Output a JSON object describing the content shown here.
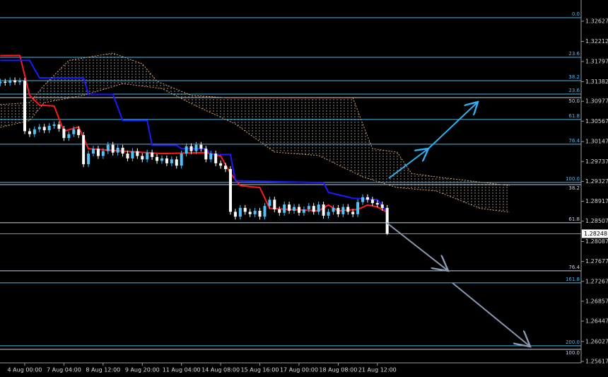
{
  "chart_data": {
    "type": "candlestick",
    "xlim": [
      -5.05,
      113.6
    ],
    "ylim": [
      1.25296,
      1.33064
    ],
    "up_color": "#4fc3f7",
    "down_color": "#ffffff",
    "xticks": [
      {
        "value": 0,
        "label": "4 Aug 00:00"
      },
      {
        "value": 8,
        "label": "7 Aug 04:00"
      },
      {
        "value": 16,
        "label": "8 Aug 12:00"
      },
      {
        "value": 24,
        "label": "9 Aug 20:00"
      },
      {
        "value": 32,
        "label": "11 Aug 04:00"
      },
      {
        "value": 40,
        "label": "14 Aug 08:00"
      },
      {
        "value": 48,
        "label": "15 Aug 16:00"
      },
      {
        "value": 56,
        "label": "17 Aug 00:00"
      },
      {
        "value": 64,
        "label": "18 Aug 08:00"
      },
      {
        "value": 72,
        "label": "21 Aug 12:00"
      }
    ],
    "yticks": [
      1.32627,
      1.32212,
      1.31797,
      1.31382,
      1.30977,
      1.30567,
      1.30147,
      1.29737,
      1.29327,
      1.28917,
      1.28507,
      1.28087,
      1.27677,
      1.27267,
      1.26857,
      1.26447,
      1.26027,
      1.25617
    ],
    "price": 1.28248,
    "levels": [
      {
        "value": 1.327,
        "label": "0.0",
        "color": "#4fb8e8"
      },
      {
        "value": 1.31884,
        "label": "23.6",
        "color": "#4fb8e8"
      },
      {
        "value": 1.31403,
        "label": "38.2",
        "color": "#4fb8e8"
      },
      {
        "value": 1.31126,
        "label": "23.6",
        "color": "#4fb8e8"
      },
      {
        "value": 1.31053,
        "label": "50.0",
        "color": "#c8d0dc"
      },
      {
        "value": 1.30602,
        "label": "61.8",
        "color": "#4fb8e8"
      },
      {
        "value": 1.30092,
        "label": "76.4",
        "color": "#4fb8e8"
      },
      {
        "value": 1.29305,
        "label": "100.0",
        "color": "#4fb8e8"
      },
      {
        "value": 1.29261,
        "label": "38.2",
        "color": "#c8d0dc"
      },
      {
        "value": 1.28475,
        "label": "61.8",
        "color": "#c8d0dc"
      },
      {
        "value": 1.27484,
        "label": "76.4",
        "color": "#c8d0dc"
      },
      {
        "value": 1.27236,
        "label": "161.8",
        "color": "#4fb8e8"
      },
      {
        "value": 1.25939,
        "label": "200.0",
        "color": "#4fb8e8"
      },
      {
        "value": 1.25866,
        "label": "100.0",
        "color": "#c8d0dc"
      }
    ],
    "x": [
      -5,
      -4,
      -3,
      -2,
      -1,
      0,
      1,
      2,
      3,
      4,
      5,
      6,
      7,
      8,
      9,
      10,
      11,
      12,
      13,
      14,
      15,
      16,
      17,
      18,
      19,
      20,
      21,
      22,
      23,
      24,
      25,
      26,
      27,
      28,
      29,
      30,
      31,
      32,
      33,
      34,
      35,
      36,
      37,
      38,
      39,
      40,
      41,
      42,
      43,
      44,
      45,
      46,
      47,
      48,
      49,
      50,
      51,
      52,
      53,
      54,
      55,
      56,
      57,
      58,
      59,
      60,
      61,
      62,
      63,
      64,
      65,
      66,
      67,
      68,
      69,
      70,
      71,
      72,
      73,
      74
    ],
    "candles": [
      [
        1.3135,
        1.3144,
        1.3129,
        1.3138
      ],
      [
        1.3138,
        1.3144,
        1.313,
        1.3136
      ],
      [
        1.3136,
        1.3147,
        1.313,
        1.3141
      ],
      [
        1.3141,
        1.3147,
        1.3131,
        1.3137
      ],
      [
        1.3137,
        1.3146,
        1.3131,
        1.314
      ],
      [
        1.314,
        1.3146,
        1.303,
        1.3036
      ],
      [
        1.3036,
        1.3042,
        1.3024,
        1.303
      ],
      [
        1.303,
        1.3046,
        1.3024,
        1.304
      ],
      [
        1.304,
        1.3051,
        1.3034,
        1.3045
      ],
      [
        1.3045,
        1.3051,
        1.3032,
        1.3038
      ],
      [
        1.3038,
        1.3053,
        1.3032,
        1.3047
      ],
      [
        1.3047,
        1.3056,
        1.3041,
        1.305
      ],
      [
        1.305,
        1.3056,
        1.3035,
        1.3041
      ],
      [
        1.3041,
        1.3047,
        1.3016,
        1.3022
      ],
      [
        1.3022,
        1.3036,
        1.3016,
        1.303
      ],
      [
        1.303,
        1.3046,
        1.3024,
        1.304
      ],
      [
        1.304,
        1.3046,
        1.3022,
        1.3028
      ],
      [
        1.3028,
        1.3034,
        1.2962,
        1.2968
      ],
      [
        1.2968,
        1.2996,
        1.2962,
        1.299
      ],
      [
        1.299,
        1.3006,
        1.2984,
        1.3
      ],
      [
        1.3,
        1.3006,
        1.2979,
        1.2985
      ],
      [
        1.2985,
        1.3001,
        1.2979,
        1.2995
      ],
      [
        1.2995,
        1.3014,
        1.2989,
        1.3008
      ],
      [
        1.3008,
        1.3014,
        1.2986,
        1.2992
      ],
      [
        1.2992,
        1.3008,
        1.2986,
        1.3002
      ],
      [
        1.3002,
        1.3008,
        1.2984,
        1.299
      ],
      [
        1.299,
        1.2996,
        1.2974,
        1.298
      ],
      [
        1.298,
        1.3001,
        1.2974,
        1.2995
      ],
      [
        1.2995,
        1.3001,
        1.2979,
        1.2985
      ],
      [
        1.2985,
        1.2991,
        1.2972,
        1.2978
      ],
      [
        1.2978,
        1.2998,
        1.2972,
        1.2992
      ],
      [
        1.2992,
        1.2998,
        1.2977,
        1.2983
      ],
      [
        1.2983,
        1.2989,
        1.2969,
        1.2975
      ],
      [
        1.2975,
        1.2986,
        1.2969,
        1.298
      ],
      [
        1.298,
        1.2986,
        1.2964,
        1.297
      ],
      [
        1.297,
        1.2984,
        1.2964,
        1.2978
      ],
      [
        1.2978,
        1.2984,
        1.2959,
        1.2965
      ],
      [
        1.2965,
        1.2996,
        1.2959,
        1.299
      ],
      [
        1.299,
        1.3011,
        1.2984,
        1.3005
      ],
      [
        1.3005,
        1.3011,
        1.2989,
        1.2995
      ],
      [
        1.2995,
        1.3014,
        1.2989,
        1.3008
      ],
      [
        1.3008,
        1.3014,
        1.2994,
        1.3
      ],
      [
        1.3,
        1.3006,
        1.2972,
        1.2978
      ],
      [
        1.2978,
        1.2996,
        1.2972,
        1.299
      ],
      [
        1.299,
        1.2996,
        1.2964,
        1.297
      ],
      [
        1.297,
        1.2976,
        1.2959,
        1.2965
      ],
      [
        1.2965,
        1.2971,
        1.2952,
        1.2958
      ],
      [
        1.2958,
        1.2964,
        1.2864,
        1.287
      ],
      [
        1.287,
        1.2876,
        1.2854,
        1.286
      ],
      [
        1.286,
        1.2884,
        1.2854,
        1.2878
      ],
      [
        1.2878,
        1.2884,
        1.2864,
        1.287
      ],
      [
        1.287,
        1.2876,
        1.2859,
        1.2865
      ],
      [
        1.2865,
        1.2878,
        1.2859,
        1.2872
      ],
      [
        1.2872,
        1.2878,
        1.2854,
        1.286
      ],
      [
        1.286,
        1.2888,
        1.2854,
        1.2882
      ],
      [
        1.2882,
        1.2901,
        1.2876,
        1.2895
      ],
      [
        1.2895,
        1.2901,
        1.2869,
        1.2875
      ],
      [
        1.2875,
        1.2881,
        1.2862,
        1.2868
      ],
      [
        1.2868,
        1.2891,
        1.2862,
        1.2885
      ],
      [
        1.2885,
        1.2891,
        1.2866,
        1.2872
      ],
      [
        1.2872,
        1.2886,
        1.2866,
        1.288
      ],
      [
        1.288,
        1.2886,
        1.2862,
        1.2868
      ],
      [
        1.2868,
        1.2881,
        1.2862,
        1.2875
      ],
      [
        1.2875,
        1.2888,
        1.2869,
        1.2882
      ],
      [
        1.2882,
        1.2888,
        1.2864,
        1.287
      ],
      [
        1.287,
        1.2891,
        1.2864,
        1.2885
      ],
      [
        1.2885,
        1.2891,
        1.2856,
        1.2862
      ],
      [
        1.2862,
        1.2876,
        1.2856,
        1.287
      ],
      [
        1.287,
        1.2884,
        1.2864,
        1.2878
      ],
      [
        1.2878,
        1.2884,
        1.2859,
        1.2865
      ],
      [
        1.2865,
        1.2886,
        1.2859,
        1.288
      ],
      [
        1.288,
        1.2886,
        1.2864,
        1.287
      ],
      [
        1.287,
        1.2876,
        1.2859,
        1.2865
      ],
      [
        1.2865,
        1.2896,
        1.2859,
        1.289
      ],
      [
        1.289,
        1.2906,
        1.2884,
        1.29
      ],
      [
        1.29,
        1.2906,
        1.2889,
        1.2895
      ],
      [
        1.2895,
        1.2901,
        1.2882,
        1.2888
      ],
      [
        1.2888,
        1.2894,
        1.2879,
        1.2885
      ],
      [
        1.2885,
        1.2891,
        1.2872,
        1.2878
      ],
      [
        1.2878,
        1.2884,
        1.2822,
        1.2825
      ]
    ],
    "lines": [
      {
        "color": "#ff1a1a",
        "x": [
          -5,
          -1,
          1,
          3,
          6,
          8,
          11,
          13,
          20,
          28,
          37,
          40,
          42,
          44,
          48,
          50,
          60,
          62,
          64,
          68,
          70,
          72,
          74
        ],
        "values": [
          1.3192,
          1.3192,
          1.311,
          1.309,
          1.3088,
          1.3036,
          1.3045,
          1.3,
          1.2995,
          1.299,
          1.2992,
          1.2985,
          1.2949,
          1.2924,
          1.292,
          1.2877,
          1.2872,
          1.2884,
          1.2872,
          1.2875,
          1.2884,
          1.288,
          1.2869
        ]
      },
      {
        "color": "#1a1aff",
        "x": [
          -5,
          1,
          3,
          12,
          13,
          18,
          20,
          25,
          26,
          31,
          32,
          37,
          38,
          42,
          43,
          61,
          62,
          67,
          72,
          74
        ],
        "values": [
          1.3182,
          1.3182,
          1.3146,
          1.3146,
          1.3112,
          1.3112,
          1.3058,
          1.3058,
          1.3007,
          1.3007,
          1.3,
          1.3,
          1.2988,
          1.2988,
          1.2934,
          1.293,
          1.291,
          1.2898,
          1.2895,
          1.2869
        ]
      },
      {
        "color": "#d9a26a",
        "x": [
          -5,
          1,
          4,
          9,
          18,
          24,
          27,
          34,
          41,
          67,
          69,
          71,
          76,
          79,
          84,
          99
        ],
        "values": [
          1.3091,
          1.3095,
          1.3131,
          1.3182,
          1.3197,
          1.3175,
          1.3139,
          1.311,
          1.3105,
          1.3105,
          1.3051,
          1.3,
          1.2993,
          1.2949,
          1.2942,
          1.2924
        ]
      },
      {
        "color": "#d9a26a",
        "x": [
          -5,
          1,
          4,
          12,
          20,
          28,
          35,
          43,
          51,
          60,
          69,
          76,
          84,
          93,
          99
        ],
        "values": [
          1.3044,
          1.3058,
          1.3095,
          1.311,
          1.3134,
          1.3124,
          1.3088,
          1.3051,
          1.2993,
          1.2986,
          1.2942,
          1.292,
          1.2913,
          1.2877,
          1.2869
        ]
      }
    ]
  }
}
